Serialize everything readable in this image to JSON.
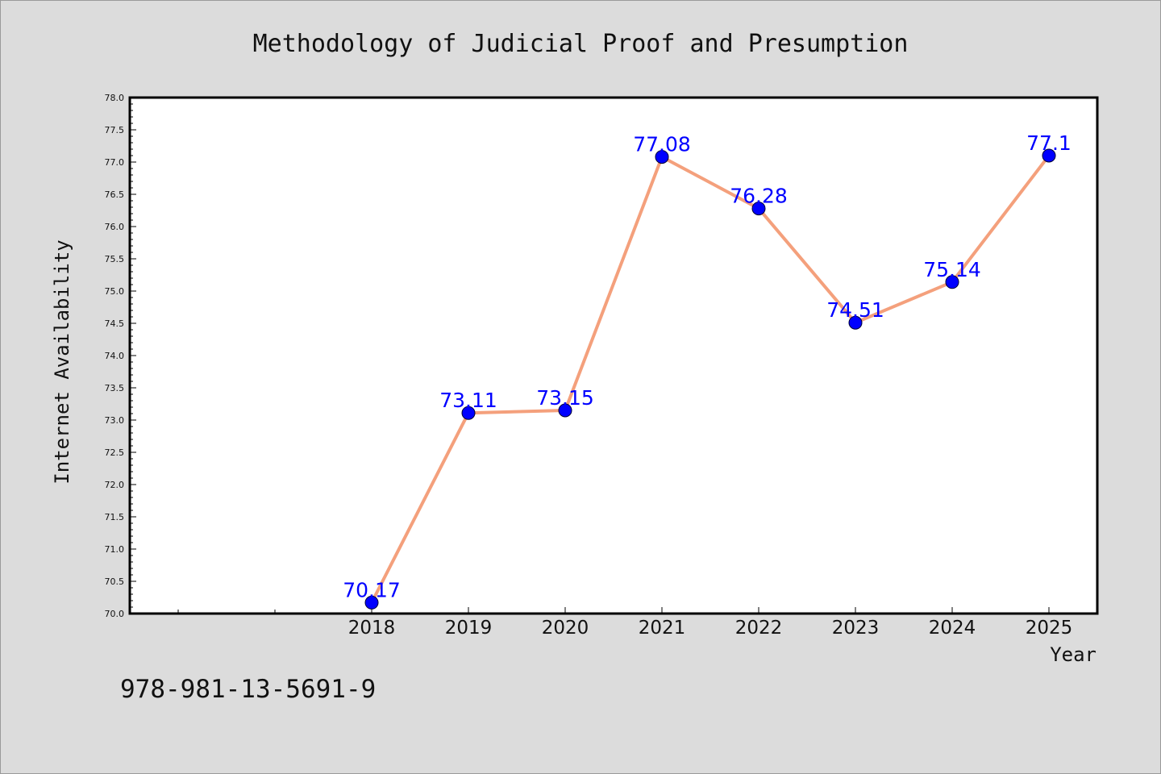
{
  "chart_data": {
    "type": "line",
    "title": "Methodology of Judicial Proof and Presumption",
    "xlabel": "Year",
    "ylabel": "Internet Availability",
    "x": [
      "2018",
      "2019",
      "2020",
      "2021",
      "2022",
      "2023",
      "2024",
      "2025"
    ],
    "series": [
      {
        "values": [
          70.17,
          73.11,
          73.15,
          77.08,
          76.28,
          74.51,
          75.14,
          77.1
        ]
      }
    ],
    "data_labels": [
      "70.17",
      "73.11",
      "73.15",
      "77.08",
      "76.28",
      "74.51",
      "75.14",
      "77.1"
    ],
    "ylim": [
      70.0,
      78.0
    ],
    "yticks": [
      "70.0",
      "70.5",
      "71.0",
      "71.5",
      "72.0",
      "72.5",
      "73.0",
      "73.5",
      "74.0",
      "74.5",
      "75.0",
      "75.5",
      "76.0",
      "76.5",
      "77.0",
      "77.5",
      "78.0"
    ],
    "grid": false,
    "legend": "none",
    "colors": {
      "line": "#f4a07c",
      "marker": "#0000ff",
      "data_label": "#0000ff",
      "background": "#dcdcdc",
      "plot_background": "#ffffff"
    }
  },
  "footer_text": "978-981-13-5691-9"
}
